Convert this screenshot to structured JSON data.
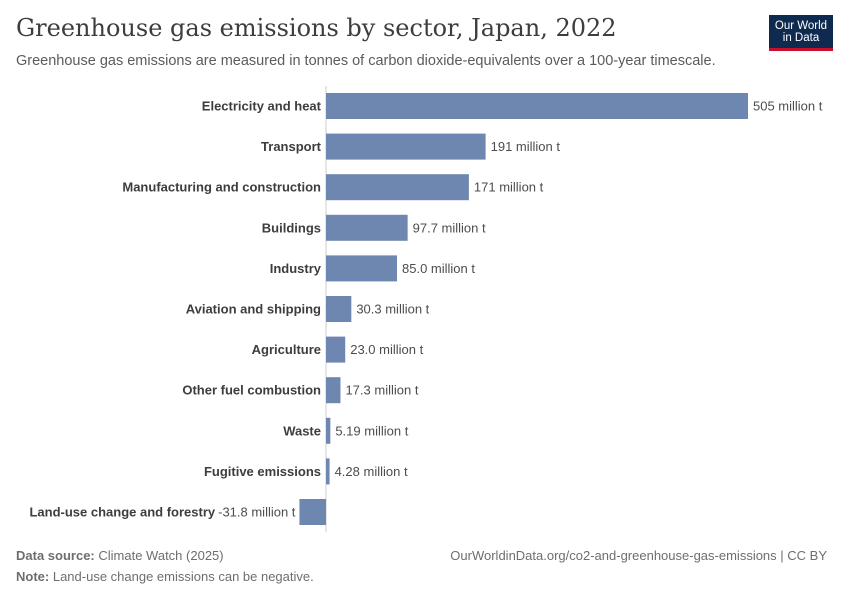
{
  "header": {
    "title": "Greenhouse gas emissions by sector, Japan, 2022",
    "subtitle": "Greenhouse gas emissions are measured in tonnes of carbon dioxide-equivalents over a 100-year timescale.",
    "logo_line1": "Our World",
    "logo_line2": "in Data"
  },
  "footer": {
    "source_label": "Data source:",
    "source_value": "Climate Watch (2025)",
    "note_label": "Note:",
    "note_value": "Land-use change emissions can be negative.",
    "url": "OurWorldinData.org/co2-and-greenhouse-gas-emissions | CC BY"
  },
  "colors": {
    "bar": "#6d87b0",
    "axis": "#cccccc",
    "label": "#3d3d3d",
    "value": "#4d4d4d"
  },
  "chart_data": {
    "type": "bar",
    "orientation": "horizontal",
    "categories": [
      "Electricity and heat",
      "Transport",
      "Manufacturing and construction",
      "Buildings",
      "Industry",
      "Aviation and shipping",
      "Agriculture",
      "Other fuel combustion",
      "Waste",
      "Fugitive emissions",
      "Land-use change and forestry"
    ],
    "values": [
      505,
      191,
      171,
      97.7,
      85.0,
      30.3,
      23.0,
      17.3,
      5.19,
      4.28,
      -31.8
    ],
    "value_labels": [
      "505 million t",
      "191 million t",
      "171 million t",
      "97.7 million t",
      "85.0 million t",
      "30.3 million t",
      "23.0 million t",
      "17.3 million t",
      "5.19 million t",
      "4.28 million t",
      "-31.8 million t"
    ],
    "unit": "million t",
    "xlim": [
      -31.8,
      505
    ],
    "grid": false,
    "legend": "none"
  }
}
